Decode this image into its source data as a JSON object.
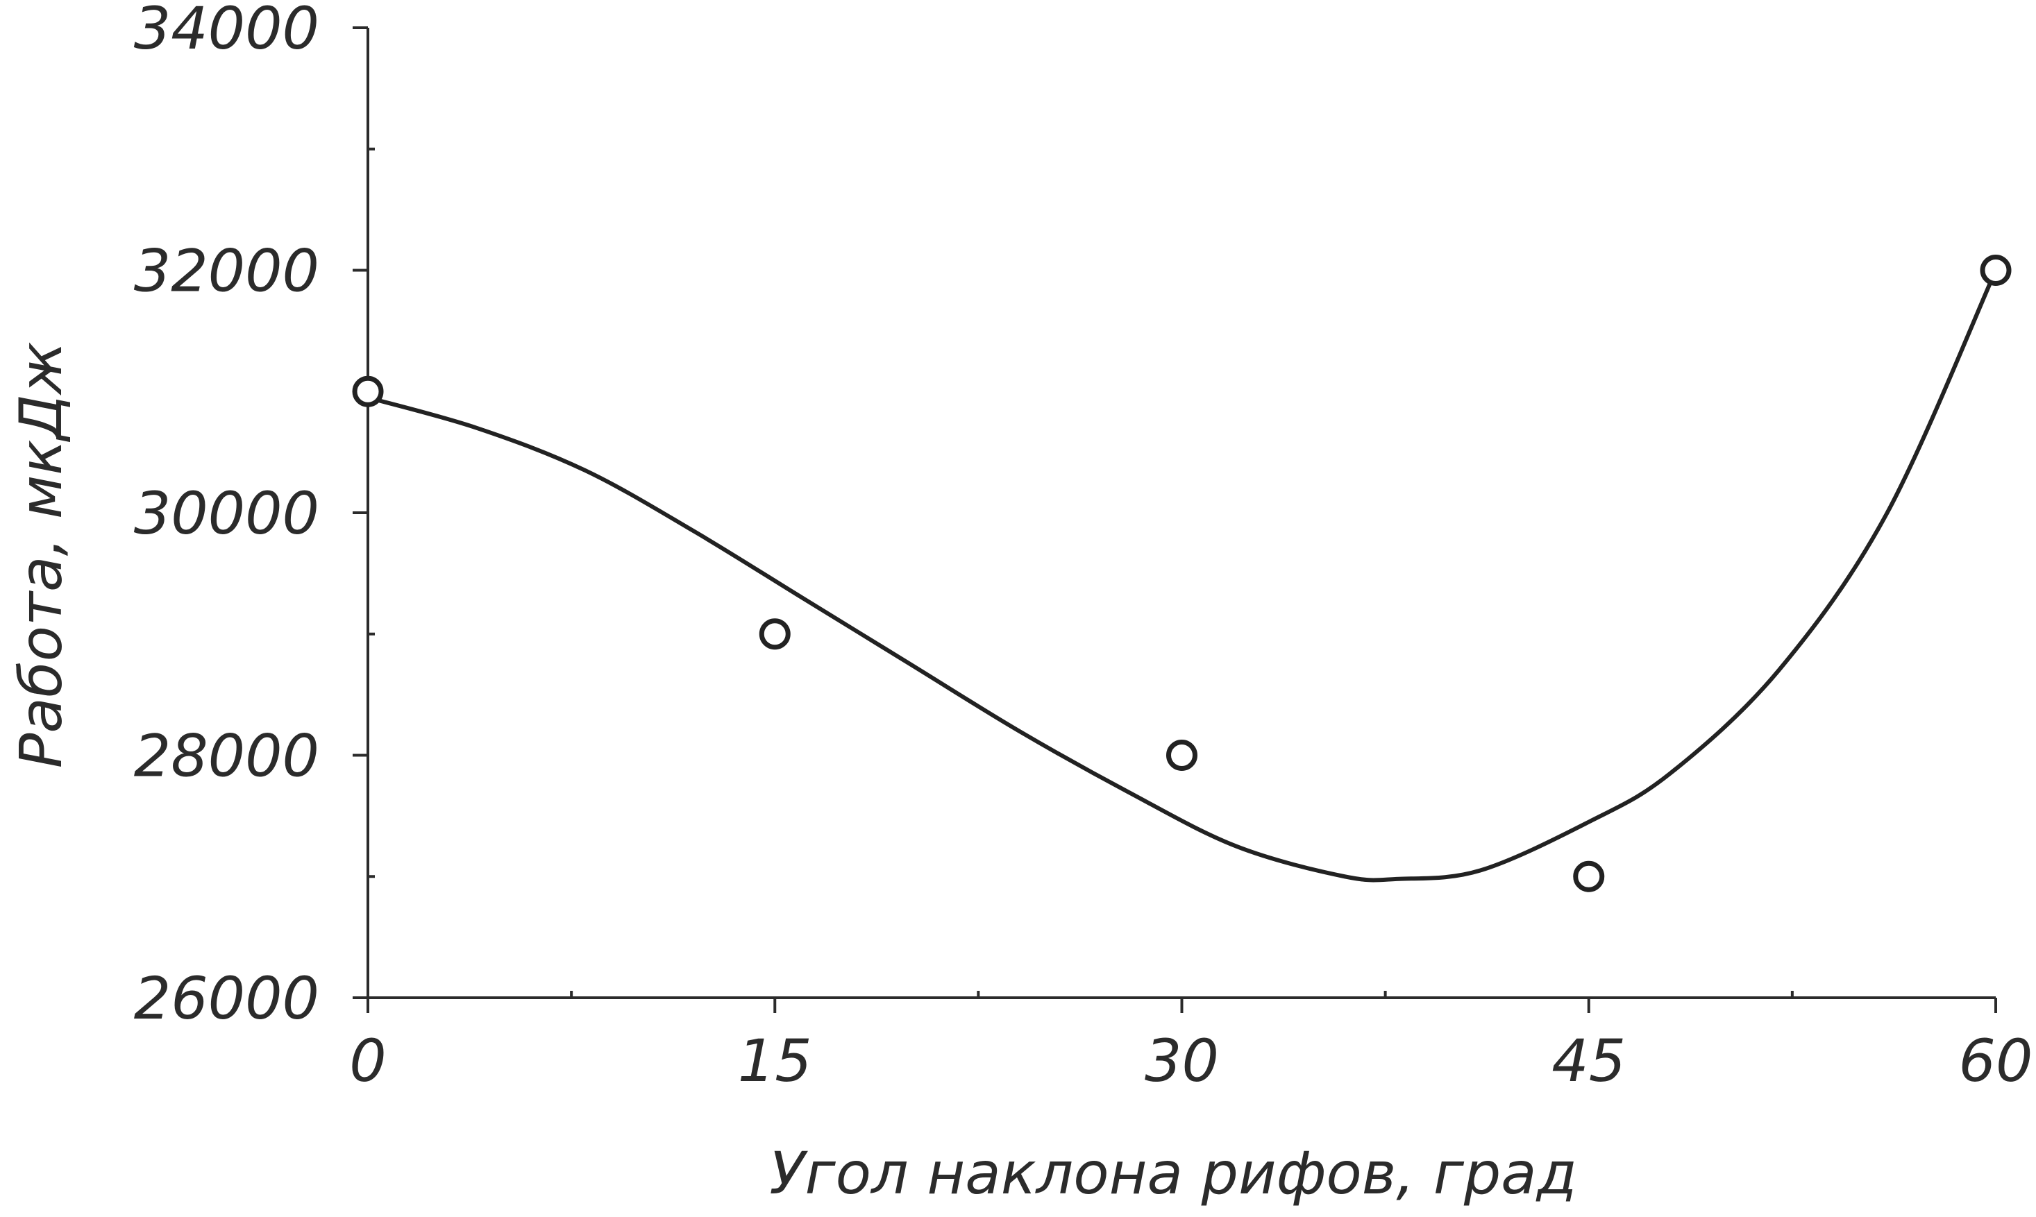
{
  "chart_data": {
    "type": "scatter",
    "xlabel": "Угол наклона рифов, град",
    "ylabel": "Работа, мкДж",
    "x_ticks": [
      "0",
      "15",
      "30",
      "45",
      "60"
    ],
    "y_ticks": [
      "26000",
      "28000",
      "30000",
      "32000",
      "34000"
    ],
    "xlim": [
      0,
      60
    ],
    "ylim": [
      26000,
      34000
    ],
    "grid": false,
    "legend": "none",
    "series": [
      {
        "kind": "points",
        "marker": "open-circle",
        "x": [
          0,
          15,
          30,
          45,
          60
        ],
        "y": [
          31000,
          29000,
          28000,
          27000,
          32000
        ]
      },
      {
        "kind": "fitted-curve",
        "x": [
          0,
          4,
          8,
          12,
          16,
          20,
          24,
          28,
          32,
          36,
          38,
          41,
          45,
          48,
          52,
          56,
          60
        ],
        "y": [
          30950,
          30700,
          30350,
          29850,
          29300,
          28750,
          28200,
          27700,
          27250,
          27000,
          26980,
          27050,
          27450,
          27850,
          28700,
          30000,
          32000
        ]
      }
    ]
  }
}
